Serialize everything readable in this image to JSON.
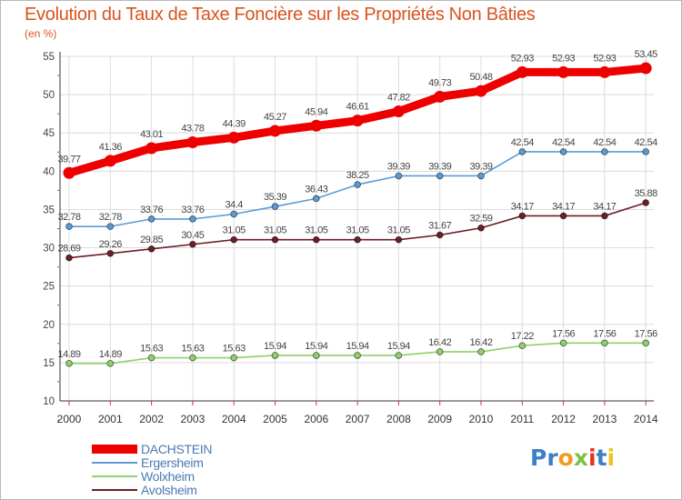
{
  "title": "Evolution du Taux de Taxe Foncière sur les Propriétés Non Bâties",
  "subtitle": "(en %)",
  "logo": {
    "text": "Proxiti",
    "letters": [
      {
        "ch": "P",
        "color": "#3a7fc8"
      },
      {
        "ch": "r",
        "color": "#3a7fc8"
      },
      {
        "ch": "o",
        "color": "#f39a1f"
      },
      {
        "ch": "x",
        "color": "#7cc143"
      },
      {
        "ch": "i",
        "color": "#e8331e"
      },
      {
        "ch": "t",
        "color": "#3a7fc8"
      },
      {
        "ch": "i",
        "color": "#f2c21a"
      }
    ]
  },
  "chart_data": {
    "type": "line",
    "title": "Evolution du Taux de Taxe Foncière sur les Propriétés Non Bâties",
    "ylabel": "(en %)",
    "xlabel": "",
    "x": [
      "2000",
      "2001",
      "2002",
      "2003",
      "2004",
      "2005",
      "2006",
      "2007",
      "2008",
      "2009",
      "2010",
      "2011",
      "2012",
      "2013",
      "2014"
    ],
    "ylim": [
      10,
      55
    ],
    "yticks": [
      "10",
      "15",
      "20",
      "25",
      "30",
      "35",
      "40",
      "45",
      "50",
      "55"
    ],
    "grid": true,
    "legend": "bottom-left",
    "series": [
      {
        "name": "DACHSTEIN",
        "color": "#ee0000",
        "values": [
          39.77,
          41.36,
          43.01,
          43.78,
          44.39,
          45.27,
          45.94,
          46.61,
          47.82,
          49.73,
          50.48,
          52.93,
          52.93,
          52.93,
          53.45
        ],
        "labels": [
          "39.77",
          "41.36",
          "43.01",
          "43.78",
          "44.39",
          "45.27",
          "45.94",
          "46.61",
          "47.82",
          "49.73",
          "50.48",
          "52.93",
          "52.93",
          "52.93",
          "53.45"
        ]
      },
      {
        "name": "Ergersheim",
        "color": "#5b9bd5",
        "values": [
          32.78,
          32.78,
          33.76,
          33.76,
          34.4,
          35.39,
          36.43,
          38.25,
          39.39,
          39.39,
          39.39,
          42.54,
          42.54,
          42.54,
          42.54
        ],
        "labels": [
          "32.78",
          "32.78",
          "33.76",
          "33.76",
          "34.4",
          "35.39",
          "36.43",
          "38.25",
          "39.39",
          "39.39",
          "39.39",
          "42.54",
          "42.54",
          "42.54",
          "42.54"
        ]
      },
      {
        "name": "Wolxheim",
        "color": "#8fd16a",
        "values": [
          14.89,
          14.89,
          15.63,
          15.63,
          15.63,
          15.94,
          15.94,
          15.94,
          15.94,
          16.42,
          16.42,
          17.22,
          17.56,
          17.56,
          17.56
        ],
        "labels": [
          "14.89",
          "14.89",
          "15.63",
          "15.63",
          "15.63",
          "15.94",
          "15.94",
          "15.94",
          "15.94",
          "16.42",
          "16.42",
          "17.22",
          "17.56",
          "17.56",
          "17.56"
        ]
      },
      {
        "name": "Avolsheim",
        "color": "#6b1f26",
        "values": [
          28.69,
          29.26,
          29.85,
          30.45,
          31.05,
          31.05,
          31.05,
          31.05,
          31.05,
          31.67,
          32.59,
          34.17,
          34.17,
          34.17,
          35.88
        ],
        "labels": [
          "28.69",
          "29.26",
          "29.85",
          "30.45",
          "31.05",
          "31.05",
          "31.05",
          "31.05",
          "31.05",
          "31.67",
          "32.59",
          "34.17",
          "34.17",
          "34.17",
          "35.88"
        ]
      }
    ]
  }
}
